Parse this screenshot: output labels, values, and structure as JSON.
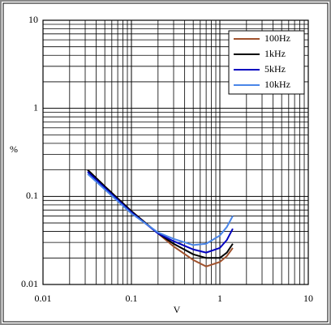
{
  "chart_data": {
    "type": "line",
    "x_label": "V",
    "y_label": "%",
    "x": [
      0.032,
      0.05,
      0.1,
      0.2,
      0.3,
      0.5,
      0.7,
      1.0,
      1.2,
      1.4
    ],
    "series": [
      {
        "name": "100Hz",
        "color": "#a0522d",
        "values": [
          0.2,
          0.13,
          0.068,
          0.038,
          0.027,
          0.019,
          0.016,
          0.018,
          0.021,
          0.026
        ]
      },
      {
        "name": "1kHz",
        "color": "#000000",
        "values": [
          0.2,
          0.13,
          0.068,
          0.038,
          0.029,
          0.022,
          0.02,
          0.02,
          0.023,
          0.029
        ]
      },
      {
        "name": "5kHz",
        "color": "#0000c0",
        "values": [
          0.19,
          0.125,
          0.066,
          0.038,
          0.031,
          0.025,
          0.023,
          0.026,
          0.032,
          0.043
        ]
      },
      {
        "name": "10kHz",
        "color": "#4a86e8",
        "values": [
          0.18,
          0.12,
          0.064,
          0.039,
          0.033,
          0.028,
          0.029,
          0.036,
          0.045,
          0.06
        ]
      }
    ],
    "xlim": [
      0.01,
      10
    ],
    "ylim": [
      0.01,
      10
    ],
    "xticks": [
      0.01,
      0.1,
      1,
      10
    ],
    "yticks": [
      0.01,
      0.1,
      1,
      10
    ],
    "x_log": true,
    "y_log": true,
    "grid": true,
    "legend": "top-right"
  }
}
